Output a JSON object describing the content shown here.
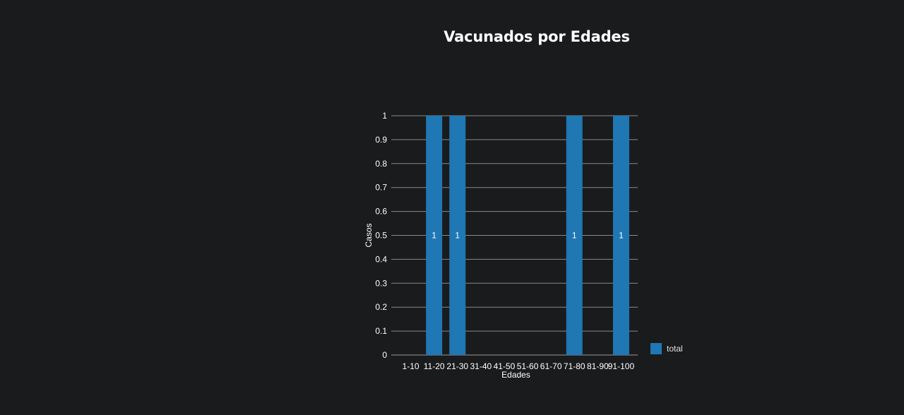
{
  "chart_data": {
    "type": "bar",
    "title": "Vacunados por Edades",
    "xlabel": "Edades",
    "ylabel": "Casos",
    "categories": [
      "1-10",
      "11-20",
      "21-30",
      "31-40",
      "41-50",
      "51-60",
      "61-70",
      "71-80",
      "81-90",
      "91-100"
    ],
    "series": [
      {
        "name": "total",
        "values": [
          0,
          1,
          1,
          0,
          0,
          0,
          0,
          1,
          0,
          1
        ],
        "color": "#1f77b4"
      }
    ],
    "ylim": [
      0,
      1
    ],
    "yticks": [
      "0",
      "0.1",
      "0.2",
      "0.3",
      "0.4",
      "0.5",
      "0.6",
      "0.7",
      "0.8",
      "0.9",
      "1"
    ],
    "bar_labels": [
      "",
      "1",
      "1",
      "",
      "",
      "",
      "",
      "1",
      "",
      "1"
    ],
    "grid": true,
    "legend": "bottom-right",
    "colors": {
      "background": "#1a1b1d",
      "grid": "#8a8a8a",
      "text": "#ffffff"
    }
  }
}
